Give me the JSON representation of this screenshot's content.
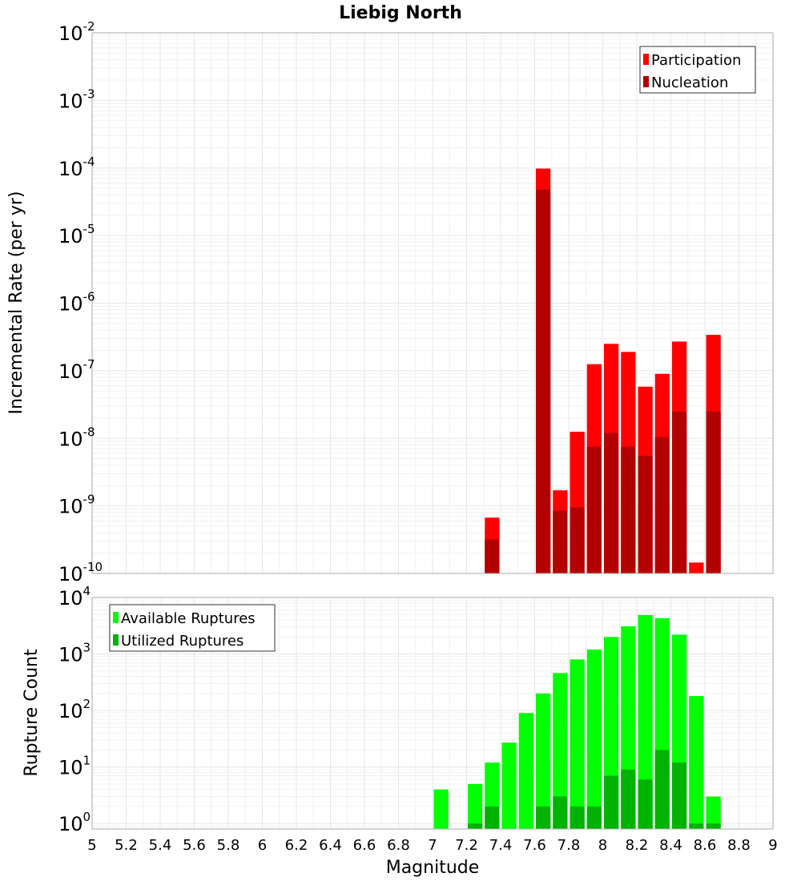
{
  "chart_data": [
    {
      "type": "bar",
      "title": "Liebig North",
      "ylabel": "Incremental Rate (per yr)",
      "xlabel": "",
      "y_scale": "log",
      "ylim": [
        1e-10,
        0.01
      ],
      "xlim": [
        5,
        9
      ],
      "grid": true,
      "legend_position": "top-right",
      "y_ticks": [
        {
          "base": "10",
          "exp": "-10"
        },
        {
          "base": "10",
          "exp": "-9"
        },
        {
          "base": "10",
          "exp": "-8"
        },
        {
          "base": "10",
          "exp": "-7"
        },
        {
          "base": "10",
          "exp": "-6"
        },
        {
          "base": "10",
          "exp": "-5"
        },
        {
          "base": "10",
          "exp": "-4"
        },
        {
          "base": "10",
          "exp": "-3"
        },
        {
          "base": "10",
          "exp": "-2"
        }
      ],
      "series": [
        {
          "name": "Participation",
          "color": "#ff0000",
          "x": [
            7.35,
            7.65,
            7.75,
            7.85,
            7.95,
            8.05,
            8.15,
            8.25,
            8.35,
            8.45,
            8.55,
            8.65
          ],
          "values": [
            6.7e-10,
            9.8e-05,
            1.7e-09,
            1.25e-08,
            1.25e-07,
            2.5e-07,
            1.9e-07,
            5.8e-08,
            9e-08,
            2.7e-07,
            1.45e-10,
            3.4e-07
          ]
        },
        {
          "name": "Nucleation",
          "color": "#b30000",
          "x": [
            7.35,
            7.65,
            7.75,
            7.85,
            7.95,
            8.05,
            8.15,
            8.25,
            8.35,
            8.45,
            8.65
          ],
          "values": [
            3.2e-10,
            4.8e-05,
            8.5e-10,
            9.5e-10,
            7.5e-09,
            1.2e-08,
            7.5e-09,
            5.5e-09,
            1.05e-08,
            2.5e-08,
            2.5e-08
          ]
        }
      ]
    },
    {
      "type": "bar",
      "title": "",
      "ylabel": "Rupture Count",
      "xlabel": "Magnitude",
      "y_scale": "log",
      "ylim": [
        0.8,
        10000
      ],
      "xlim": [
        5,
        9
      ],
      "grid": true,
      "legend_position": "top-left",
      "x_ticks": [
        "5",
        "5.2",
        "5.4",
        "5.6",
        "5.8",
        "6",
        "6.2",
        "6.4",
        "6.6",
        "6.8",
        "7",
        "7.2",
        "7.4",
        "7.6",
        "7.8",
        "8",
        "8.2",
        "8.4",
        "8.6",
        "8.8",
        "9"
      ],
      "y_ticks": [
        {
          "base": "10",
          "exp": "0"
        },
        {
          "base": "10",
          "exp": "1"
        },
        {
          "base": "10",
          "exp": "2"
        },
        {
          "base": "10",
          "exp": "3"
        },
        {
          "base": "10",
          "exp": "4"
        }
      ],
      "series": [
        {
          "name": "Available Ruptures",
          "color": "#00ff00",
          "x": [
            7.05,
            7.25,
            7.35,
            7.45,
            7.55,
            7.65,
            7.75,
            7.85,
            7.95,
            8.05,
            8.15,
            8.25,
            8.35,
            8.45,
            8.55,
            8.65
          ],
          "values": [
            4,
            5,
            12,
            27,
            90,
            200,
            460,
            800,
            1200,
            2000,
            3100,
            4900,
            4300,
            2200,
            180,
            3
          ]
        },
        {
          "name": "Utilized Ruptures",
          "color": "#00b300",
          "x": [
            7.25,
            7.35,
            7.65,
            7.75,
            7.85,
            7.95,
            8.05,
            8.15,
            8.25,
            8.35,
            8.45,
            8.55,
            8.65
          ],
          "values": [
            1,
            2,
            2,
            3,
            2,
            2,
            7,
            9,
            6,
            20,
            12,
            1,
            1
          ]
        }
      ]
    }
  ]
}
